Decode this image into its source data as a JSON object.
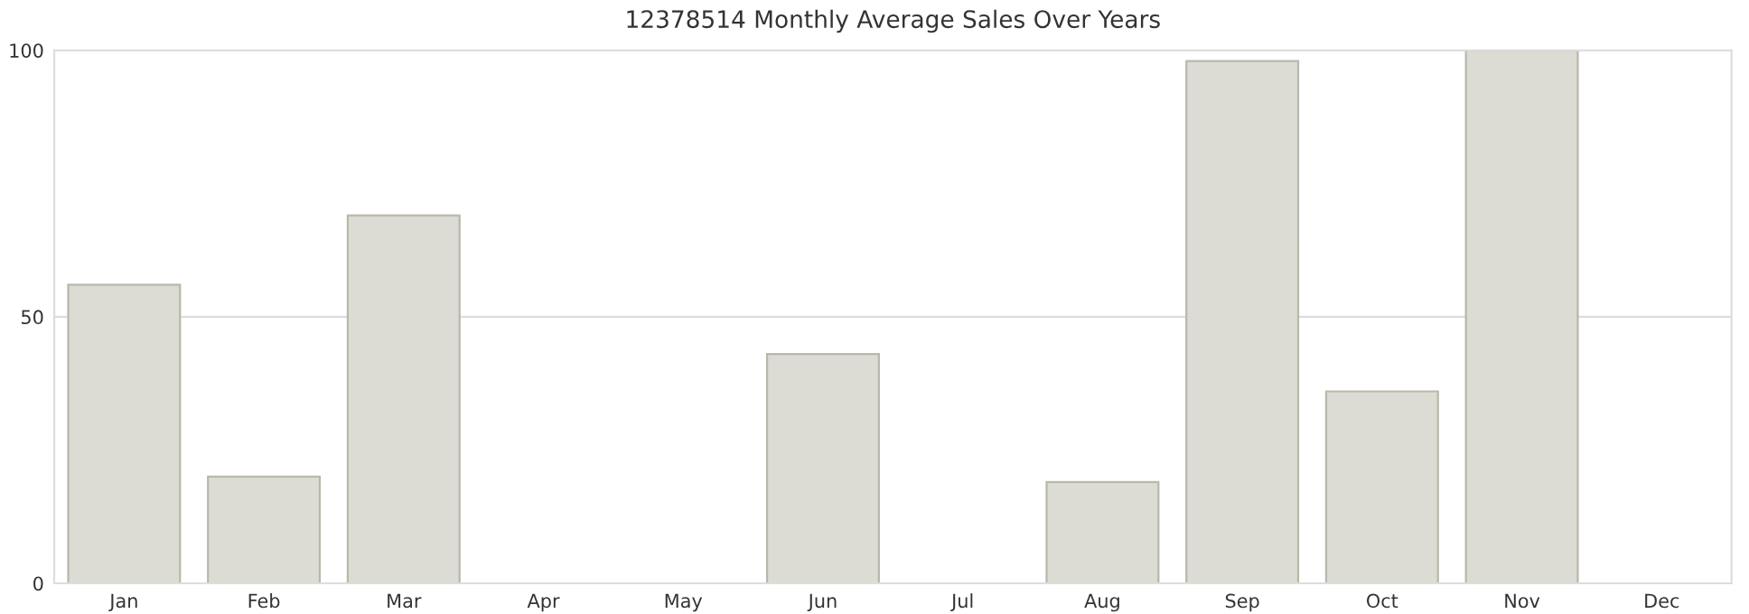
{
  "chart_data": {
    "type": "bar",
    "title": "12378514 Monthly Average Sales Over Years",
    "categories": [
      "Jan",
      "Feb",
      "Mar",
      "Apr",
      "May",
      "Jun",
      "Jul",
      "Aug",
      "Sep",
      "Oct",
      "Nov",
      "Dec"
    ],
    "values": [
      56,
      20,
      69,
      0,
      0,
      43,
      0,
      19,
      98,
      36,
      100,
      0
    ],
    "color": "#dcdcd4",
    "ylim": [
      0,
      100
    ],
    "yticks": [
      0,
      50,
      100
    ],
    "grid": "y"
  }
}
